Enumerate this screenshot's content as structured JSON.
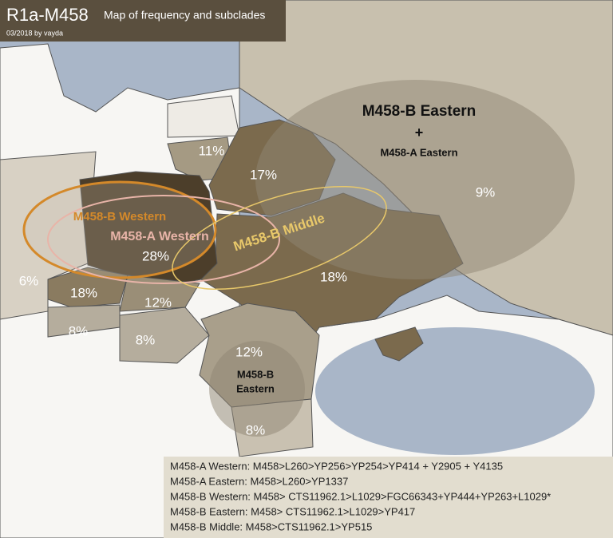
{
  "header": {
    "title": "R1a-M458",
    "subtitle": "Map of frequency and subclades",
    "credit": "03/2018 by vayda"
  },
  "map_labels": {
    "eastern_title": "M458-B Eastern",
    "plus": "+",
    "eastern_sub": "M458-A Eastern",
    "western_b": "M458-B Western",
    "western_a": "M458-A Western",
    "middle_b": "M458-B Middle",
    "balkan_eastern": [
      "M458-B",
      "Eastern"
    ]
  },
  "frequencies": {
    "russia": "9%",
    "lithuania": "11%",
    "belarus": "17%",
    "poland": "28%",
    "germany": "6%",
    "czechia": "18%",
    "ukraine": "18%",
    "slovakia": "12%",
    "austria": "8%",
    "hungary": "8%",
    "romania": "12%",
    "bulgaria": "8%"
  },
  "legend": [
    "M458-A Western: M458>L260>YP256>YP254>YP414 + Y2905 + Y4135",
    "M458-A Eastern: M458>L260>YP1337",
    "M458-B Western: M458> CTS11962.1>L1029>FGC66343+YP444+YP263+L1029*",
    "M458-B Eastern: M458> CTS11962.1>L1029>YP417",
    "M458-B Middle: M458>CTS11962.1>YP515"
  ]
}
